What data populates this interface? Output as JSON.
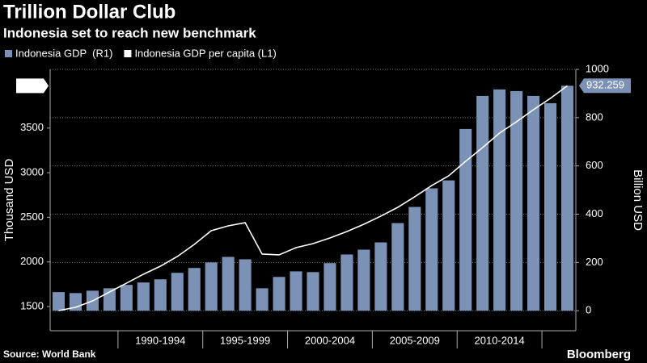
{
  "chart_data": {
    "type": "bar_line",
    "title": "Trillion Dollar Club",
    "subtitle": "Indonesia set to reach new benchmark",
    "source": "Source: World Bank",
    "brand": "Bloomberg",
    "ylabel": "Thousand USD",
    "y2label": "Billion USD",
    "categories": [
      null,
      null,
      null,
      null,
      null,
      null,
      null,
      null,
      null,
      null,
      null,
      null,
      null,
      null,
      null,
      null,
      null,
      null,
      null,
      null,
      null,
      null,
      null,
      null,
      null,
      null,
      null,
      null,
      null,
      null,
      null
    ],
    "category_groups": [
      "1990-1994",
      "1995-1999",
      "2000-2004",
      "2005-2009",
      "2010-2014"
    ],
    "series": [
      {
        "name": "Indonesia GDP  (R1)",
        "color": "#7b91b5",
        "axis": "y2",
        "kind": "bar",
        "values": [
          77,
          73,
          83,
          93,
          107,
          117,
          130,
          157,
          177,
          200,
          223,
          213,
          93,
          140,
          163,
          160,
          197,
          233,
          253,
          283,
          363,
          430,
          507,
          540,
          753,
          890,
          917,
          910,
          890,
          860,
          932.259
        ]
      },
      {
        "name": "Indonesia GDP per capita (L1)",
        "color": "#ffffff",
        "axis": "y",
        "kind": "line",
        "values": [
          1455,
          1491,
          1563,
          1663,
          1762,
          1862,
          1952,
          2061,
          2196,
          2350,
          2404,
          2440,
          2088,
          2079,
          2160,
          2205,
          2269,
          2341,
          2422,
          2513,
          2612,
          2730,
          2856,
          2965,
          3127,
          3281,
          3444,
          3571,
          3706,
          3833,
          3974
        ]
      }
    ],
    "ylim": [
      1229,
      4158
    ],
    "yticks": [
      1500,
      2000,
      2500,
      3000,
      3500
    ],
    "y2lim": [
      -83,
      1000
    ],
    "y2ticks": [
      0,
      200,
      400,
      600,
      800,
      1000
    ],
    "grid": true
  }
}
